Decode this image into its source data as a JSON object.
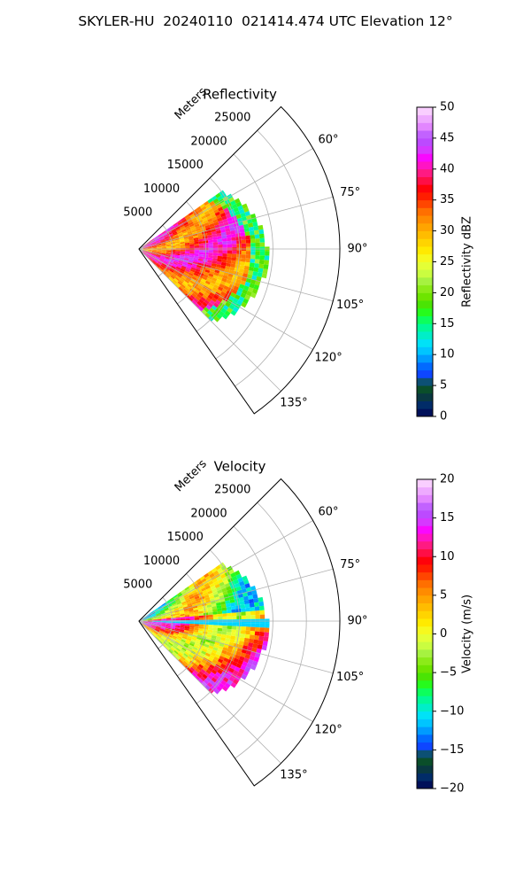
{
  "figure_title": "SKYLER-HU  20240110  021414.474 UTC Elevation 12°",
  "colors": {
    "reflectivity_scale": [
      "#00004c",
      "#002a6e",
      "#0a3a3a",
      "#0a5a20",
      "#1040ff",
      "#0070ff",
      "#00b4ff",
      "#00e0ff",
      "#00f0c0",
      "#00ff80",
      "#20ff20",
      "#50e000",
      "#80e800",
      "#a0f040",
      "#d0ff40",
      "#f0ff30",
      "#ffee00",
      "#ffd000",
      "#ffb000",
      "#ff9000",
      "#ff6a00",
      "#ff3000",
      "#ff0000",
      "#ff1050",
      "#ff20a0",
      "#ff00ff",
      "#d040ff",
      "#b050ff",
      "#e080ff",
      "#f0b0ff",
      "#ffe0ff"
    ],
    "velocity_scale": [
      "#00004c",
      "#002a6e",
      "#0a3a3a",
      "#0a5a20",
      "#1040ff",
      "#0070ff",
      "#00b4ff",
      "#00e0ff",
      "#00f0c0",
      "#00ff80",
      "#20ff20",
      "#50e000",
      "#80e800",
      "#a0f040",
      "#d0ff40",
      "#f0ff30",
      "#ffee00",
      "#ffd000",
      "#ffb000",
      "#ff9000",
      "#ff6a00",
      "#ff3000",
      "#ff0000",
      "#ff1050",
      "#ff20a0",
      "#ff00ff",
      "#d040ff",
      "#b050ff",
      "#e080ff",
      "#f0b0ff",
      "#ffe0ff"
    ]
  },
  "chart_data": [
    {
      "type": "heatmap",
      "projection": "polar",
      "title": "Reflectivity",
      "radial_axis_label": "Meters",
      "r_ticks": [
        5000,
        10000,
        15000,
        20000,
        25000
      ],
      "r_lim": [
        0,
        30000
      ],
      "theta_ticks_deg": [
        60,
        75,
        90,
        105,
        120,
        135
      ],
      "theta_tick_labels": [
        "60°",
        "75°",
        "90°",
        "105°",
        "120°",
        "135°"
      ],
      "theta_lim_deg": [
        45,
        145
      ],
      "grid": true,
      "data_sector_deg": [
        55,
        135
      ],
      "data_max_range_m": 19000,
      "colorbar": {
        "label": "Reflectivity dBZ",
        "range": [
          0,
          50
        ],
        "ticks": [
          0,
          5,
          10,
          15,
          20,
          25,
          30,
          35,
          40,
          45,
          50
        ],
        "tick_labels": [
          "0",
          "5",
          "10",
          "15",
          "20",
          "25",
          "30",
          "35",
          "40",
          "45",
          "50"
        ]
      }
    },
    {
      "type": "heatmap",
      "projection": "polar",
      "title": "Velocity",
      "radial_axis_label": "Meters",
      "r_ticks": [
        5000,
        10000,
        15000,
        20000,
        25000
      ],
      "r_lim": [
        0,
        30000
      ],
      "theta_ticks_deg": [
        60,
        75,
        90,
        105,
        120,
        135
      ],
      "theta_tick_labels": [
        "60°",
        "75°",
        "90°",
        "105°",
        "120°",
        "135°"
      ],
      "theta_lim_deg": [
        45,
        145
      ],
      "grid": true,
      "data_sector_deg": [
        55,
        135
      ],
      "data_max_range_m": 19000,
      "colorbar": {
        "label": "Velocity (m/s)",
        "range": [
          -20,
          20
        ],
        "ticks": [
          -20,
          -15,
          -10,
          -5,
          0,
          5,
          10,
          15,
          20
        ],
        "tick_labels": [
          "−20",
          "−15",
          "−10",
          "−5",
          "0",
          "5",
          "10",
          "15",
          "20"
        ]
      }
    }
  ]
}
